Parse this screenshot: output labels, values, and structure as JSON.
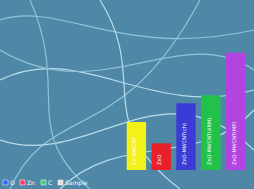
{
  "chart_data": {
    "type": "bar",
    "categories": [
      "Zn-MWCNT",
      "ZnO",
      "ZnO-MWCNT(ch)",
      "ZnO-MWCNT(ARM)",
      "ZnO-MWCNT(MP)"
    ],
    "values": [
      36,
      20,
      50,
      56,
      88
    ],
    "colors": [
      "#f2f21a",
      "#e8202a",
      "#3b3bd6",
      "#22c24a",
      "#b244e2"
    ],
    "ylim": [
      0,
      120
    ],
    "yticks": [
      0,
      40,
      80,
      120
    ],
    "grid": false,
    "tick_labels": false,
    "data_labels": false,
    "annotations": [
      "O",
      "Zn",
      "C",
      "Sample"
    ]
  }
}
